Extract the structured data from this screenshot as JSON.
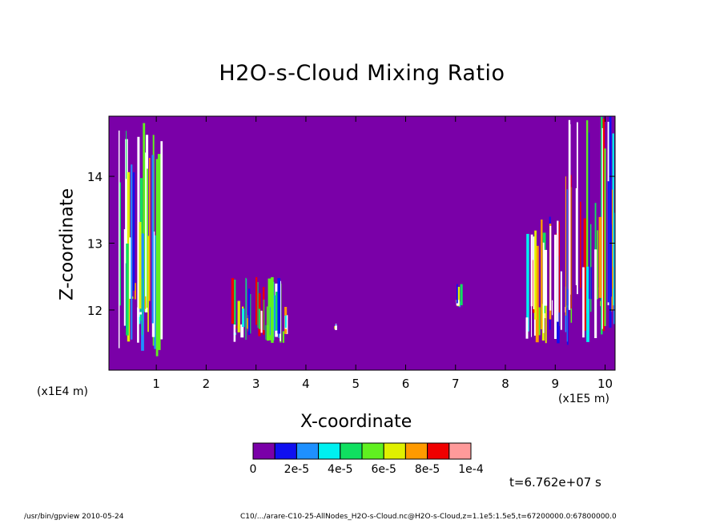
{
  "chart_data": {
    "type": "heatmap",
    "title": "H2O-s-Cloud Mixing Ratio",
    "xlabel": "X-coordinate",
    "ylabel": "Z-coordinate",
    "x_unit_label": "(x1E5 m)",
    "y_unit_label": "(x1E4 m)",
    "xlim": [
      0.05,
      10.2
    ],
    "ylim": [
      11.1,
      14.9
    ],
    "x_ticks": [
      1,
      2,
      3,
      4,
      5,
      6,
      7,
      8,
      9,
      10
    ],
    "x_tick_labels": [
      "1",
      "2",
      "3",
      "4",
      "5",
      "6",
      "7",
      "8",
      "9",
      "10"
    ],
    "y_ticks": [
      12,
      13,
      14
    ],
    "y_tick_labels": [
      "12",
      "13",
      "14"
    ],
    "background_color": "#7a00a8",
    "colorbar": {
      "colors": [
        "#7a00a8",
        "#1010f0",
        "#1e90ff",
        "#00f0f0",
        "#10e060",
        "#60f020",
        "#e0f000",
        "#ff9a00",
        "#f00000",
        "#ff9a9a"
      ],
      "tick_labels": [
        "0",
        "2e-5",
        "4e-5",
        "6e-5",
        "8e-5",
        "1e-4"
      ]
    },
    "cloud_regions": [
      {
        "x": [
          0.15,
          1.1
        ],
        "z": [
          11.3,
          14.8
        ]
      },
      {
        "x": [
          2.5,
          3.6
        ],
        "z": [
          11.5,
          12.5
        ]
      },
      {
        "x": [
          4.55,
          4.6
        ],
        "z": [
          11.7,
          11.8
        ]
      },
      {
        "x": [
          6.95,
          7.1
        ],
        "z": [
          12.0,
          12.4
        ]
      },
      {
        "x": [
          8.4,
          9.2
        ],
        "z": [
          11.5,
          13.4
        ]
      },
      {
        "x": [
          9.2,
          10.2
        ],
        "z": [
          11.4,
          14.9
        ]
      }
    ]
  },
  "timestamp": "t=6.762e+07 s",
  "footer": {
    "left": "/usr/bin/gpview  2010-05-24",
    "right": "C10/.../arare-C10-25-AllNodes_H2O-s-Cloud.nc@H2O-s-Cloud,z=1.1e5:1.5e5,t=67200000.0:67800000.0"
  }
}
